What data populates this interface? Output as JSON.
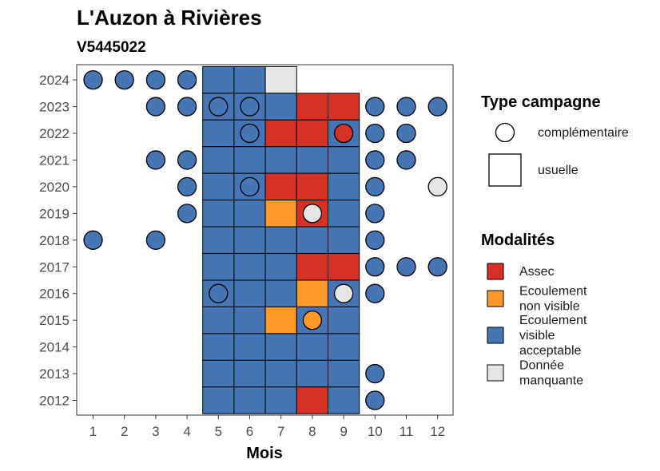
{
  "colors": {
    "Assec": "#d73027",
    "Ecoulement non visible": "#fe9929",
    "Ecoulement visible acceptable": "#4575b4",
    "Donnée manquante": "#e6e6e6"
  },
  "chart_data": {
    "type": "heatmap",
    "title": "L'Auzon à Rivières",
    "subtitle": "V5445022",
    "xlabel": "Mois",
    "ylabel": "",
    "x_ticks": [
      1,
      2,
      3,
      4,
      5,
      6,
      7,
      8,
      9,
      10,
      11,
      12
    ],
    "y_ticks": [
      2012,
      2013,
      2014,
      2015,
      2016,
      2017,
      2018,
      2019,
      2020,
      2021,
      2022,
      2023,
      2024
    ],
    "legend_shape": {
      "title": "Type campagne",
      "items": [
        {
          "key": "complementaire",
          "label": "complémentaire",
          "shape": "circle"
        },
        {
          "key": "usuelle",
          "label": "usuelle",
          "shape": "square"
        }
      ]
    },
    "legend_fill": {
      "title": "Modalités",
      "items": [
        {
          "key": "Assec",
          "lines": [
            "Assec"
          ]
        },
        {
          "key": "Ecoulement non visible",
          "lines": [
            "Ecoulement",
            "non visible"
          ]
        },
        {
          "key": "Ecoulement visible acceptable",
          "lines": [
            "Ecoulement",
            "visible",
            "acceptable"
          ]
        },
        {
          "key": "Donnée manquante",
          "lines": [
            "Donnée",
            "manquante"
          ]
        }
      ]
    },
    "usuelle": [
      {
        "year": 2024,
        "months": [
          "Ecoulement visible acceptable",
          "Ecoulement visible acceptable",
          "Donnée manquante",
          null,
          null
        ],
        "start": 5
      },
      {
        "year": 2023,
        "months": [
          "Ecoulement visible acceptable",
          "Ecoulement visible acceptable",
          "Ecoulement visible acceptable",
          "Assec",
          "Assec"
        ],
        "start": 5
      },
      {
        "year": 2022,
        "months": [
          "Ecoulement visible acceptable",
          "Ecoulement visible acceptable",
          "Assec",
          "Assec",
          "Ecoulement visible acceptable"
        ],
        "start": 5
      },
      {
        "year": 2021,
        "months": [
          "Ecoulement visible acceptable",
          "Ecoulement visible acceptable",
          "Ecoulement visible acceptable",
          "Ecoulement visible acceptable",
          "Ecoulement visible acceptable"
        ],
        "start": 5
      },
      {
        "year": 2020,
        "months": [
          "Ecoulement visible acceptable",
          "Ecoulement visible acceptable",
          "Assec",
          "Assec",
          "Ecoulement visible acceptable"
        ],
        "start": 5
      },
      {
        "year": 2019,
        "months": [
          "Ecoulement visible acceptable",
          "Ecoulement visible acceptable",
          "Ecoulement non visible",
          "Assec",
          "Ecoulement visible acceptable"
        ],
        "start": 5
      },
      {
        "year": 2018,
        "months": [
          "Ecoulement visible acceptable",
          "Ecoulement visible acceptable",
          "Ecoulement visible acceptable",
          "Ecoulement visible acceptable",
          "Ecoulement visible acceptable"
        ],
        "start": 5
      },
      {
        "year": 2017,
        "months": [
          "Ecoulement visible acceptable",
          "Ecoulement visible acceptable",
          "Ecoulement visible acceptable",
          "Assec",
          "Assec"
        ],
        "start": 5
      },
      {
        "year": 2016,
        "months": [
          "Ecoulement visible acceptable",
          "Ecoulement visible acceptable",
          "Ecoulement visible acceptable",
          "Ecoulement non visible",
          "Ecoulement visible acceptable"
        ],
        "start": 5
      },
      {
        "year": 2015,
        "months": [
          "Ecoulement visible acceptable",
          "Ecoulement visible acceptable",
          "Ecoulement non visible",
          "Ecoulement visible acceptable",
          "Ecoulement visible acceptable"
        ],
        "start": 5
      },
      {
        "year": 2014,
        "months": [
          "Ecoulement visible acceptable",
          "Ecoulement visible acceptable",
          "Ecoulement visible acceptable",
          "Ecoulement visible acceptable",
          "Ecoulement visible acceptable"
        ],
        "start": 5
      },
      {
        "year": 2013,
        "months": [
          "Ecoulement visible acceptable",
          "Ecoulement visible acceptable",
          "Ecoulement visible acceptable",
          "Ecoulement visible acceptable",
          "Ecoulement visible acceptable"
        ],
        "start": 5
      },
      {
        "year": 2012,
        "months": [
          "Ecoulement visible acceptable",
          "Ecoulement visible acceptable",
          "Ecoulement visible acceptable",
          "Assec",
          "Ecoulement visible acceptable"
        ],
        "start": 5
      }
    ],
    "complementaire": [
      {
        "year": 2024,
        "month": 1,
        "value": "Ecoulement visible acceptable"
      },
      {
        "year": 2024,
        "month": 2,
        "value": "Ecoulement visible acceptable"
      },
      {
        "year": 2024,
        "month": 3,
        "value": "Ecoulement visible acceptable"
      },
      {
        "year": 2024,
        "month": 4,
        "value": "Ecoulement visible acceptable"
      },
      {
        "year": 2023,
        "month": 3,
        "value": "Ecoulement visible acceptable"
      },
      {
        "year": 2023,
        "month": 4,
        "value": "Ecoulement visible acceptable"
      },
      {
        "year": 2023,
        "month": 5,
        "value": "Ecoulement visible acceptable"
      },
      {
        "year": 2023,
        "month": 6,
        "value": "Ecoulement visible acceptable"
      },
      {
        "year": 2023,
        "month": 10,
        "value": "Ecoulement visible acceptable"
      },
      {
        "year": 2023,
        "month": 11,
        "value": "Ecoulement visible acceptable"
      },
      {
        "year": 2023,
        "month": 12,
        "value": "Ecoulement visible acceptable"
      },
      {
        "year": 2022,
        "month": 6,
        "value": "Ecoulement visible acceptable"
      },
      {
        "year": 2022,
        "month": 9,
        "value": "Assec"
      },
      {
        "year": 2022,
        "month": 10,
        "value": "Ecoulement visible acceptable"
      },
      {
        "year": 2022,
        "month": 11,
        "value": "Ecoulement visible acceptable"
      },
      {
        "year": 2021,
        "month": 3,
        "value": "Ecoulement visible acceptable"
      },
      {
        "year": 2021,
        "month": 4,
        "value": "Ecoulement visible acceptable"
      },
      {
        "year": 2021,
        "month": 10,
        "value": "Ecoulement visible acceptable"
      },
      {
        "year": 2021,
        "month": 11,
        "value": "Ecoulement visible acceptable"
      },
      {
        "year": 2020,
        "month": 4,
        "value": "Ecoulement visible acceptable"
      },
      {
        "year": 2020,
        "month": 6,
        "value": "Ecoulement visible acceptable"
      },
      {
        "year": 2020,
        "month": 10,
        "value": "Ecoulement visible acceptable"
      },
      {
        "year": 2020,
        "month": 12,
        "value": "Donnée manquante"
      },
      {
        "year": 2019,
        "month": 4,
        "value": "Ecoulement visible acceptable"
      },
      {
        "year": 2019,
        "month": 8,
        "value": "Donnée manquante"
      },
      {
        "year": 2019,
        "month": 10,
        "value": "Ecoulement visible acceptable"
      },
      {
        "year": 2018,
        "month": 1,
        "value": "Ecoulement visible acceptable"
      },
      {
        "year": 2018,
        "month": 3,
        "value": "Ecoulement visible acceptable"
      },
      {
        "year": 2018,
        "month": 10,
        "value": "Ecoulement visible acceptable"
      },
      {
        "year": 2017,
        "month": 10,
        "value": "Ecoulement visible acceptable"
      },
      {
        "year": 2017,
        "month": 11,
        "value": "Ecoulement visible acceptable"
      },
      {
        "year": 2017,
        "month": 12,
        "value": "Ecoulement visible acceptable"
      },
      {
        "year": 2016,
        "month": 5,
        "value": "Ecoulement visible acceptable"
      },
      {
        "year": 2016,
        "month": 9,
        "value": "Donnée manquante"
      },
      {
        "year": 2016,
        "month": 10,
        "value": "Ecoulement visible acceptable"
      },
      {
        "year": 2015,
        "month": 8,
        "value": "Ecoulement non visible"
      },
      {
        "year": 2013,
        "month": 10,
        "value": "Ecoulement visible acceptable"
      },
      {
        "year": 2012,
        "month": 10,
        "value": "Ecoulement visible acceptable"
      }
    ]
  }
}
